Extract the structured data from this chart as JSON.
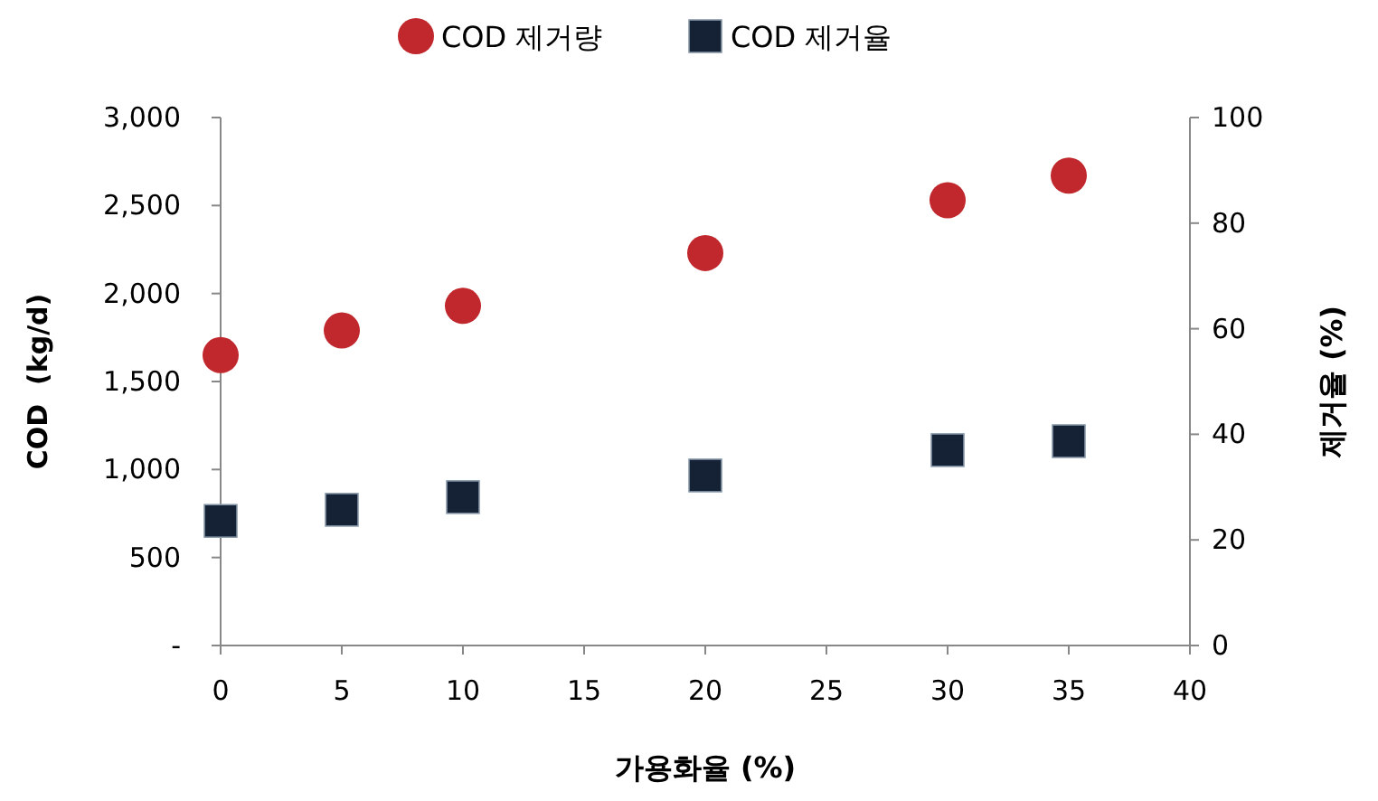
{
  "chart_data": {
    "type": "scatter",
    "xlabel": "가용화율 (%)",
    "ylabel": "COD  (kg/d)",
    "y2label": "제거율 (%)",
    "xlim": [
      0,
      40
    ],
    "xticks": [
      0,
      5,
      10,
      15,
      20,
      25,
      30,
      35,
      40
    ],
    "ylim": [
      0,
      3000
    ],
    "yticks": [
      {
        "value": 0,
        "label": "-"
      },
      {
        "value": 500,
        "label": "500"
      },
      {
        "value": 1000,
        "label": "1,000"
      },
      {
        "value": 1500,
        "label": "1,500"
      },
      {
        "value": 2000,
        "label": "2,000"
      },
      {
        "value": 2500,
        "label": "2,500"
      },
      {
        "value": 3000,
        "label": "3,000"
      }
    ],
    "y2lim": [
      0,
      100
    ],
    "y2ticks": [
      0,
      20,
      40,
      60,
      80,
      100
    ],
    "x": [
      0,
      5,
      10,
      20,
      30,
      35
    ],
    "legend": "top",
    "grid": false,
    "series": [
      {
        "name": "COD 제거량",
        "color": "#c0282d",
        "marker": "circle",
        "values": [
          1650,
          1790,
          1930,
          2230,
          2530,
          2670
        ]
      },
      {
        "name": "COD 제거율",
        "color": "#152236",
        "marker": "square",
        "axis": "y2",
        "values": [
          23.6,
          25.7,
          28.1,
          32.2,
          37.0,
          38.7
        ]
      }
    ]
  }
}
